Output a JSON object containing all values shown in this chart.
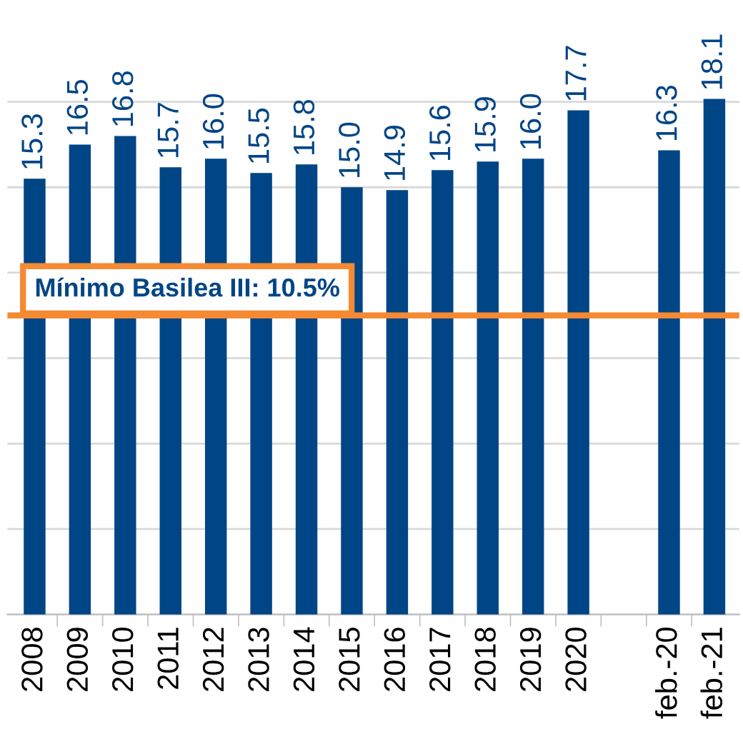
{
  "chart_data": {
    "type": "bar",
    "categories": [
      "2008",
      "2009",
      "2010",
      "2011",
      "2012",
      "2013",
      "2014",
      "2015",
      "2016",
      "2017",
      "2018",
      "2019",
      "2020",
      null,
      "feb.-20",
      "feb.-21"
    ],
    "values": [
      15.3,
      16.5,
      16.8,
      15.7,
      16.0,
      15.5,
      15.8,
      15.0,
      14.9,
      15.6,
      15.9,
      16.0,
      17.7,
      null,
      16.3,
      18.1
    ],
    "color": "#004586",
    "value_labels": [
      "15.3",
      "16.5",
      "16.8",
      "15.7",
      "16.0",
      "15.5",
      "15.8",
      "15.0",
      "14.9",
      "15.6",
      "15.9",
      "16.0",
      "17.7",
      null,
      "16.3",
      "18.1"
    ],
    "yticks": [
      {
        "value": 0,
        "label": null
      },
      {
        "value": 3,
        "label": null
      },
      {
        "value": 6,
        "label": null
      },
      {
        "value": 9,
        "label": null
      },
      {
        "value": 12,
        "label": null
      },
      {
        "value": 15,
        "label": null
      },
      {
        "value": 18,
        "label": null
      }
    ],
    "grid": "y",
    "tick_labels": "x",
    "ref_lines": [
      {
        "axis": "y",
        "value": 10.5,
        "label": "Mínimo Basilea III: 10.5%",
        "color": "#f58a33"
      }
    ]
  }
}
